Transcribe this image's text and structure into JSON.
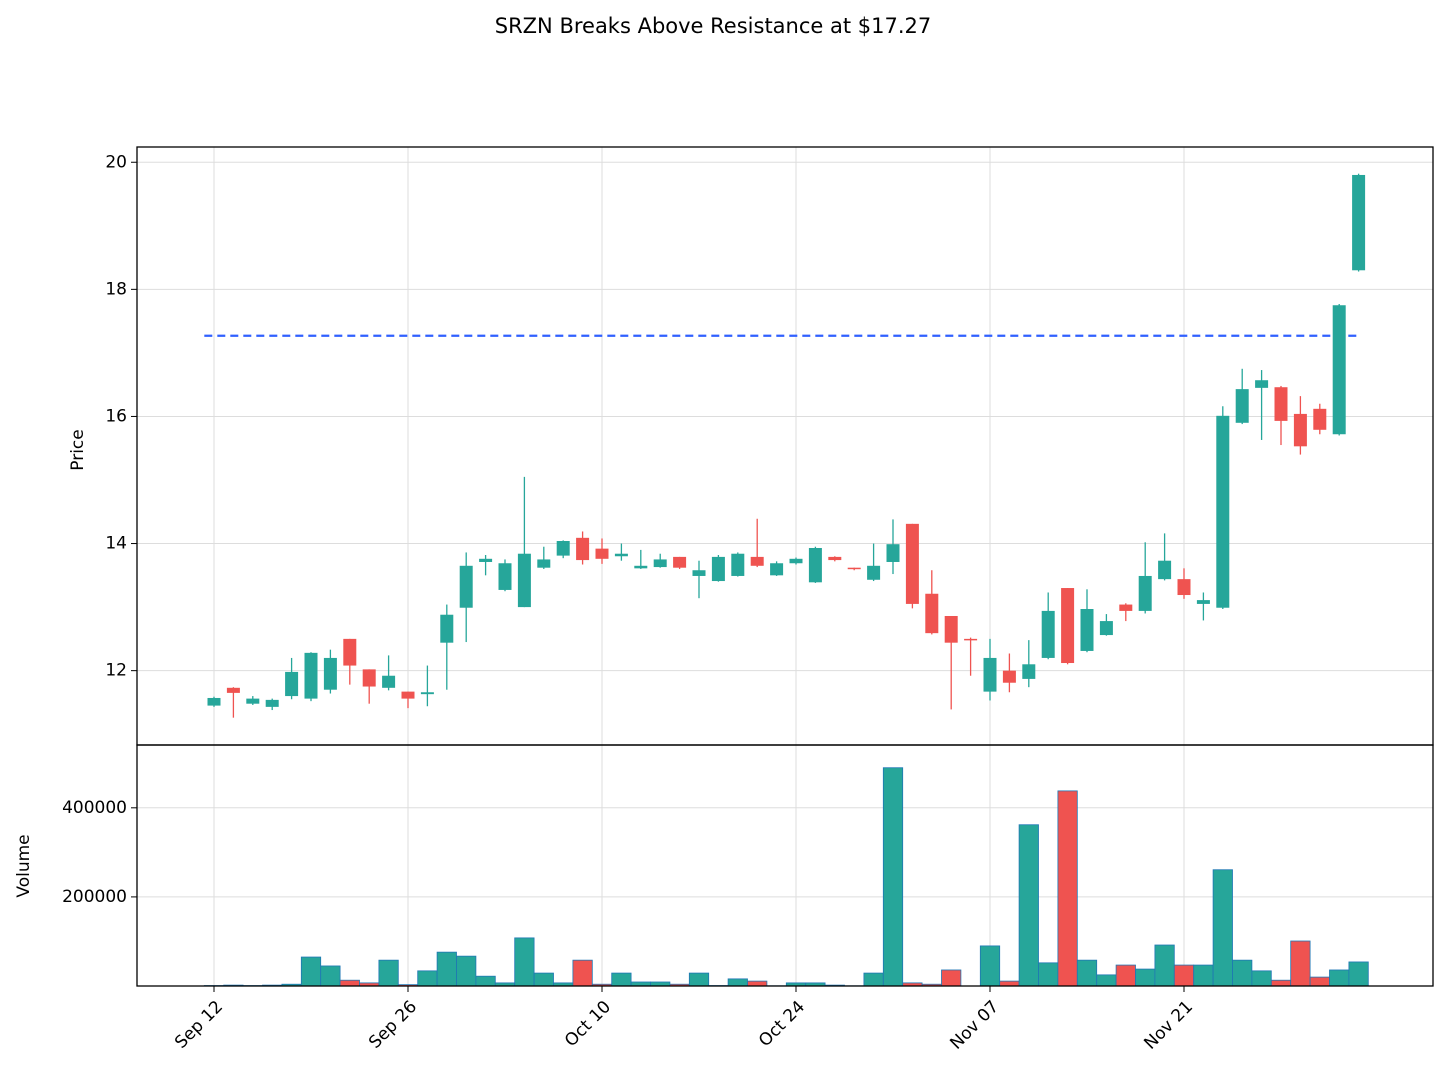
{
  "chart_data": {
    "type": "candlestick",
    "title": "SRZN Breaks Above Resistance at $17.27",
    "y_label": "Price",
    "volume_label": "Volume",
    "categories": [
      "Sep 12",
      null,
      null,
      null,
      null,
      null,
      null,
      null,
      null,
      null,
      "Sep 26",
      null,
      null,
      null,
      null,
      null,
      null,
      null,
      null,
      null,
      "Oct 10",
      null,
      null,
      null,
      null,
      null,
      null,
      null,
      null,
      null,
      "Oct 24",
      null,
      null,
      null,
      null,
      null,
      null,
      null,
      null,
      null,
      "Nov 07",
      null,
      null,
      null,
      null,
      null,
      null,
      null,
      null,
      null,
      "Nov 21",
      null,
      null,
      null,
      null,
      null,
      null,
      null,
      null,
      null
    ],
    "open": [
      11.45,
      11.73,
      11.48,
      11.43,
      11.6,
      11.56,
      11.7,
      12.5,
      12.02,
      11.73,
      11.67,
      11.63,
      12.44,
      12.99,
      13.71,
      13.27,
      13.0,
      13.62,
      13.81,
      14.09,
      13.92,
      13.8,
      13.61,
      13.63,
      13.79,
      13.49,
      13.41,
      13.49,
      13.79,
      13.5,
      13.69,
      13.39,
      13.79,
      13.62,
      13.43,
      13.71,
      14.31,
      13.21,
      12.86,
      12.5,
      11.67,
      12.0,
      11.87,
      12.2,
      13.3,
      12.31,
      12.56,
      13.04,
      12.94,
      13.44,
      13.44,
      13.05,
      12.99,
      15.9,
      16.45,
      16.46,
      16.04,
      16.12,
      15.72,
      18.3
    ],
    "high": [
      11.59,
      11.74,
      11.6,
      11.56,
      12.2,
      12.29,
      12.33,
      12.5,
      12.02,
      12.24,
      11.67,
      12.08,
      13.04,
      13.86,
      13.82,
      13.75,
      15.05,
      13.95,
      14.05,
      14.19,
      14.08,
      14.0,
      13.9,
      13.84,
      13.79,
      13.73,
      13.82,
      13.86,
      14.39,
      13.72,
      13.78,
      13.95,
      13.8,
      13.62,
      14.0,
      14.38,
      14.31,
      13.58,
      12.86,
      12.52,
      12.5,
      12.27,
      12.48,
      13.23,
      13.3,
      13.28,
      12.89,
      13.06,
      14.02,
      14.16,
      13.61,
      13.23,
      16.16,
      16.75,
      16.73,
      16.48,
      16.32,
      16.2,
      17.77,
      19.82
    ],
    "low": [
      11.43,
      11.26,
      11.46,
      11.38,
      11.55,
      11.52,
      11.64,
      11.78,
      11.48,
      11.69,
      11.41,
      11.44,
      11.7,
      12.45,
      13.5,
      13.25,
      13.0,
      13.6,
      13.77,
      13.67,
      13.68,
      13.73,
      13.6,
      13.62,
      13.6,
      13.14,
      13.4,
      13.48,
      13.63,
      13.49,
      13.67,
      13.38,
      13.72,
      13.58,
      13.41,
      13.52,
      12.98,
      12.57,
      11.39,
      11.92,
      11.53,
      11.66,
      11.74,
      12.18,
      12.1,
      12.29,
      12.55,
      12.78,
      12.9,
      13.42,
      13.13,
      12.79,
      12.97,
      15.88,
      15.63,
      15.55,
      15.4,
      15.72,
      15.7,
      18.28
    ],
    "close": [
      11.57,
      11.65,
      11.56,
      11.54,
      11.98,
      12.28,
      12.2,
      12.08,
      11.75,
      11.92,
      11.56,
      11.66,
      12.88,
      13.65,
      13.76,
      13.69,
      13.84,
      13.75,
      14.04,
      13.74,
      13.76,
      13.84,
      13.65,
      13.75,
      13.62,
      13.58,
      13.79,
      13.84,
      13.65,
      13.69,
      13.76,
      13.93,
      13.74,
      13.6,
      13.65,
      13.99,
      13.05,
      12.59,
      12.44,
      12.48,
      12.2,
      11.81,
      12.1,
      12.94,
      12.12,
      12.97,
      12.78,
      12.94,
      13.49,
      13.73,
      13.19,
      13.11,
      16.01,
      16.43,
      16.57,
      15.93,
      15.53,
      15.79,
      17.75,
      19.8
    ],
    "volume": [
      1000,
      2000,
      1000,
      2000,
      4000,
      65000,
      45000,
      13000,
      7000,
      58000,
      3000,
      34000,
      76000,
      67000,
      22000,
      7000,
      108000,
      29000,
      7000,
      58000,
      4000,
      29000,
      9000,
      9000,
      4000,
      29000,
      1000,
      16000,
      11000,
      500,
      7000,
      7000,
      2000,
      500,
      29000,
      490000,
      7000,
      4000,
      36000,
      0,
      90000,
      11000,
      362000,
      52000,
      438000,
      58000,
      25000,
      47000,
      38000,
      92000,
      47000,
      47000,
      261000,
      58000,
      34000,
      13000,
      101000,
      20000,
      36000,
      54000
    ],
    "resistance": 17.27,
    "resistance_color": "#3060ff",
    "up_color": "#26a69a",
    "down_color": "#ef5350",
    "volume_edge_color": "#1f77b4",
    "ylim": [
      10.83,
      20.24
    ],
    "yticks": [
      12,
      14,
      16,
      18,
      20
    ],
    "volume_ylim": [
      0,
      541000
    ],
    "volume_yticks": [
      200000,
      400000
    ],
    "grid": true
  }
}
